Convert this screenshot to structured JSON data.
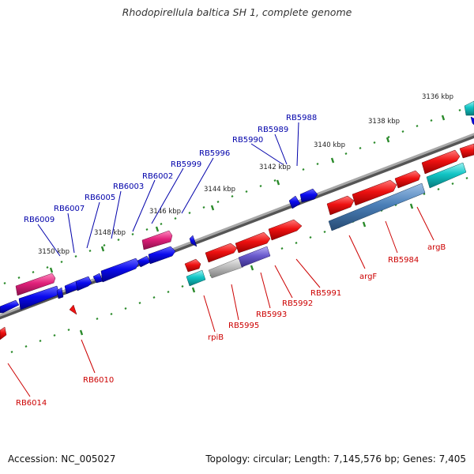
{
  "title": "Rhodopirellula baltica SH 1, complete genome",
  "footer": {
    "accession": "Accession: NC_005027",
    "summary": "Topology: circular; Length: 7,145,576 bp; Genes: 7,405"
  },
  "scale_labels": [
    "3136 kbp",
    "3138 kbp",
    "3140 kbp",
    "3142 kbp",
    "3144 kbp",
    "3146 kbp",
    "3148 kbp",
    "3150 kbp"
  ],
  "gene_labels_top": [
    "RB5988",
    "RB5989",
    "RB5990",
    "RB5996",
    "RB5999",
    "RB6002",
    "RB6003",
    "RB6005",
    "RB6007",
    "RB6009"
  ],
  "gene_labels_bottom": [
    "argB",
    "RB5984",
    "argF",
    "RB5991",
    "RB5992",
    "RB5993",
    "RB5995",
    "rpiB",
    "RB6010",
    "RB6014"
  ],
  "colors": {
    "reverse_gene_label": "#0000aa",
    "forward_gene_label": "#cc0000",
    "blue_gene": "#0a0aee",
    "red_gene": "#ee1111",
    "pink_gene": "#e0207a",
    "cyan_gene": "#11c5c5",
    "steel_gene": "#4a7fb8",
    "grey_gene": "#b8b8b8",
    "purple_gene": "#6a5acd",
    "backbone": "#888888",
    "tick": "#2a8a2a"
  }
}
